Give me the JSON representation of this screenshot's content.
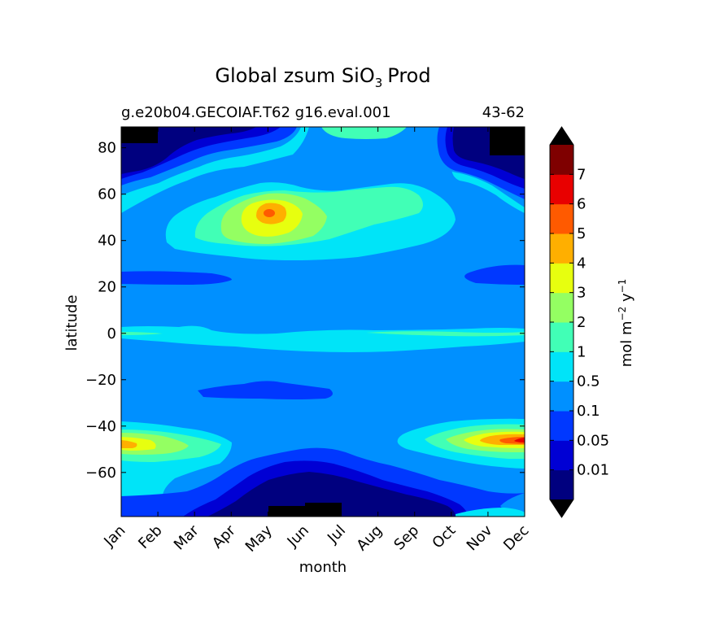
{
  "chart_data": {
    "type": "contour",
    "title_main": "Global zsum SiO",
    "title_subscript": "3",
    "title_suffix": "Prod",
    "subtitle_left": "g.e20b04.GECOIAF.T62 g16.eval.001",
    "subtitle_right": "43-62",
    "xlabel": "month",
    "ylabel": "latitude",
    "x_ticks": [
      "Jan",
      "Feb",
      "Mar",
      "Apr",
      "May",
      "Jun",
      "Jul",
      "Aug",
      "Sep",
      "Oct",
      "Nov",
      "Dec"
    ],
    "y_ticks": [
      80,
      60,
      40,
      20,
      0,
      -20,
      -40,
      -60
    ],
    "y_tick_labels": [
      "80",
      "60",
      "40",
      "20",
      "0",
      "−20",
      "−40",
      "−60"
    ],
    "ylim": [
      -79,
      89
    ],
    "colorbar": {
      "label_prefix": "mol m",
      "label_exp1": "−2",
      "label_mid": " y",
      "label_exp2": "−1",
      "levels": [
        "0.01",
        "0.05",
        "0.1",
        "0.5",
        "1",
        "2",
        "3",
        "4",
        "5",
        "6",
        "7"
      ],
      "colors": [
        "#00007f",
        "#0000d4",
        "#0038ff",
        "#0090ff",
        "#00e4f8",
        "#41ffb6",
        "#94ff62",
        "#e7ff0f",
        "#ffaf00",
        "#ff5a00",
        "#e80000",
        "#7f0000"
      ],
      "extend": "both"
    },
    "background_fill_color": "#0090ff"
  }
}
